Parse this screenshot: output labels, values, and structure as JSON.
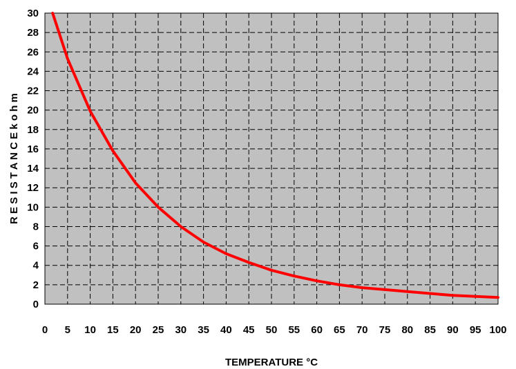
{
  "chart_data": {
    "type": "line",
    "xlabel": "TEMPERATURE °C",
    "ylabel": "R E S I S T A N C E  k o h m",
    "xlim": [
      0,
      100
    ],
    "ylim": [
      0,
      30
    ],
    "x_ticks": [
      0,
      5,
      10,
      15,
      20,
      25,
      30,
      35,
      40,
      45,
      50,
      55,
      60,
      65,
      70,
      75,
      80,
      85,
      90,
      95,
      100
    ],
    "y_ticks": [
      0,
      2,
      4,
      6,
      8,
      10,
      12,
      14,
      16,
      18,
      20,
      22,
      24,
      26,
      28,
      30
    ],
    "grid": true,
    "grid_style": "dashed",
    "plot_background": "#c0c0c0",
    "series": [
      {
        "color": "#ff0000",
        "x": [
          1.7,
          5,
          10,
          15,
          20,
          25,
          30,
          35,
          40,
          45,
          50,
          55,
          60,
          65,
          70,
          75,
          80,
          85,
          90,
          95,
          100
        ],
        "y": [
          30,
          25.3,
          19.9,
          15.8,
          12.5,
          10.0,
          8.0,
          6.4,
          5.2,
          4.3,
          3.5,
          2.9,
          2.4,
          2.0,
          1.7,
          1.5,
          1.3,
          1.1,
          0.9,
          0.8,
          0.7
        ]
      }
    ]
  }
}
